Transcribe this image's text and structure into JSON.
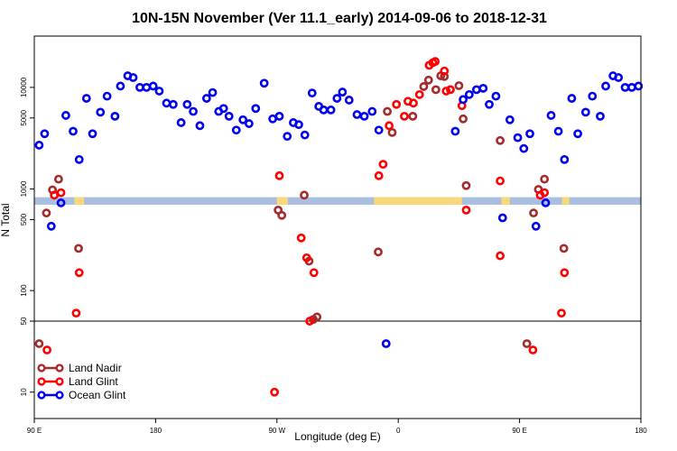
{
  "chart_data": {
    "type": "scatter",
    "title": "10N-15N November (Ver 11.1_early)   2014-09-06 to 2018-12-31",
    "xlabel": "Longitude (deg E)",
    "ylabel": "N Total",
    "yscale": "log",
    "xlim": [
      0,
      1000
    ],
    "ylim": [
      5.5,
      32000
    ],
    "x_ticks": [
      {
        "value": 0,
        "label": "90 E"
      },
      {
        "value": 200,
        "label": "180"
      },
      {
        "value": 400,
        "label": "90 W"
      },
      {
        "value": 600,
        "label": "0"
      },
      {
        "value": 800,
        "label": "90 E"
      },
      {
        "value": 1000,
        "label": "180"
      }
    ],
    "y_ticks": [
      {
        "value": 10,
        "label": "10"
      },
      {
        "value": 50,
        "label": "50"
      },
      {
        "value": 100,
        "label": "100"
      },
      {
        "value": 500,
        "label": "500"
      },
      {
        "value": 1000,
        "label": "1000"
      },
      {
        "value": 5000,
        "label": "5000"
      },
      {
        "value": 10000,
        "label": "10000"
      }
    ],
    "reference_line_y": 50,
    "land_band": {
      "y_low": 700,
      "y_high": 830,
      "ocean_color": "#a9bfdf",
      "land_color": "#f8d878"
    },
    "land_segments": [
      [
        66,
        82
      ],
      [
        400,
        418
      ],
      [
        560,
        705
      ],
      [
        770,
        784
      ],
      [
        870,
        882
      ]
    ],
    "legend": {
      "position": "bottom-left"
    },
    "series": [
      {
        "name": "Land Nadir",
        "color": "#a52a2a",
        "points": [
          [
            8,
            30
          ],
          [
            20,
            580
          ],
          [
            30,
            980
          ],
          [
            40,
            1250
          ],
          [
            73,
            260
          ],
          [
            402,
            620
          ],
          [
            408,
            550
          ],
          [
            445,
            870
          ],
          [
            453,
            195
          ],
          [
            460,
            52
          ],
          [
            466,
            55
          ],
          [
            567,
            240
          ],
          [
            582,
            5800
          ],
          [
            590,
            3600
          ],
          [
            624,
            5200
          ],
          [
            642,
            10200
          ],
          [
            650,
            11800
          ],
          [
            662,
            9500
          ],
          [
            670,
            13000
          ],
          [
            676,
            12800
          ],
          [
            700,
            10400
          ],
          [
            707,
            4900
          ],
          [
            712,
            1080
          ],
          [
            768,
            3000
          ],
          [
            812,
            30
          ],
          [
            823,
            580
          ],
          [
            831,
            990
          ],
          [
            841,
            1250
          ],
          [
            873,
            260
          ]
        ]
      },
      {
        "name": "Land Glint",
        "color": "#ff0000",
        "points": [
          [
            21,
            26
          ],
          [
            33,
            870
          ],
          [
            44,
            920
          ],
          [
            69,
            60
          ],
          [
            74,
            150
          ],
          [
            396,
            10
          ],
          [
            404,
            1350
          ],
          [
            440,
            330
          ],
          [
            449,
            210
          ],
          [
            454,
            50
          ],
          [
            461,
            150
          ],
          [
            568,
            1350
          ],
          [
            575,
            1750
          ],
          [
            585,
            4200
          ],
          [
            597,
            6800
          ],
          [
            610,
            5200
          ],
          [
            616,
            7300
          ],
          [
            625,
            7000
          ],
          [
            635,
            8500
          ],
          [
            651,
            16500
          ],
          [
            657,
            17500
          ],
          [
            661,
            18000
          ],
          [
            676,
            14500
          ],
          [
            679,
            9200
          ],
          [
            686,
            9500
          ],
          [
            705,
            6600
          ],
          [
            712,
            620
          ],
          [
            768,
            1200
          ],
          [
            768,
            220
          ],
          [
            822,
            26
          ],
          [
            834,
            870
          ],
          [
            841,
            920
          ],
          [
            869,
            60
          ],
          [
            874,
            150
          ]
        ]
      },
      {
        "name": "Ocean Glint",
        "color": "#0000ee",
        "points": [
          [
            8,
            2700
          ],
          [
            17,
            3500
          ],
          [
            28,
            430
          ],
          [
            44,
            730
          ],
          [
            52,
            5300
          ],
          [
            64,
            3700
          ],
          [
            74,
            1950
          ],
          [
            86,
            7800
          ],
          [
            96,
            3500
          ],
          [
            109,
            5700
          ],
          [
            120,
            8200
          ],
          [
            133,
            5200
          ],
          [
            142,
            10300
          ],
          [
            154,
            13000
          ],
          [
            163,
            12500
          ],
          [
            174,
            10000
          ],
          [
            185,
            10000
          ],
          [
            196,
            10300
          ],
          [
            206,
            9200
          ],
          [
            218,
            7000
          ],
          [
            229,
            6800
          ],
          [
            242,
            4500
          ],
          [
            252,
            6800
          ],
          [
            262,
            5800
          ],
          [
            273,
            4200
          ],
          [
            284,
            7800
          ],
          [
            294,
            8900
          ],
          [
            304,
            5800
          ],
          [
            312,
            6200
          ],
          [
            321,
            5200
          ],
          [
            333,
            3800
          ],
          [
            344,
            4800
          ],
          [
            354,
            4400
          ],
          [
            365,
            6200
          ],
          [
            379,
            11000
          ],
          [
            393,
            4900
          ],
          [
            404,
            5200
          ],
          [
            417,
            3300
          ],
          [
            427,
            4500
          ],
          [
            436,
            4300
          ],
          [
            446,
            3400
          ],
          [
            458,
            8800
          ],
          [
            469,
            6500
          ],
          [
            477,
            6000
          ],
          [
            489,
            6000
          ],
          [
            499,
            7800
          ],
          [
            508,
            9000
          ],
          [
            519,
            7500
          ],
          [
            532,
            5400
          ],
          [
            544,
            5200
          ],
          [
            557,
            5800
          ],
          [
            568,
            3800
          ],
          [
            580,
            30
          ],
          [
            694,
            3700
          ],
          [
            707,
            7600
          ],
          [
            717,
            8500
          ],
          [
            729,
            9500
          ],
          [
            740,
            9800
          ],
          [
            750,
            6800
          ],
          [
            761,
            8200
          ],
          [
            772,
            520
          ],
          [
            784,
            4800
          ],
          [
            797,
            3200
          ],
          [
            807,
            2500
          ],
          [
            817,
            3500
          ],
          [
            827,
            430
          ],
          [
            843,
            730
          ],
          [
            852,
            5300
          ],
          [
            864,
            3700
          ],
          [
            874,
            1950
          ],
          [
            886,
            7800
          ],
          [
            896,
            3500
          ],
          [
            909,
            5700
          ],
          [
            920,
            8200
          ],
          [
            933,
            5200
          ],
          [
            942,
            10300
          ],
          [
            954,
            13000
          ],
          [
            963,
            12500
          ],
          [
            974,
            10000
          ],
          [
            985,
            10000
          ],
          [
            996,
            10300
          ]
        ]
      }
    ]
  }
}
